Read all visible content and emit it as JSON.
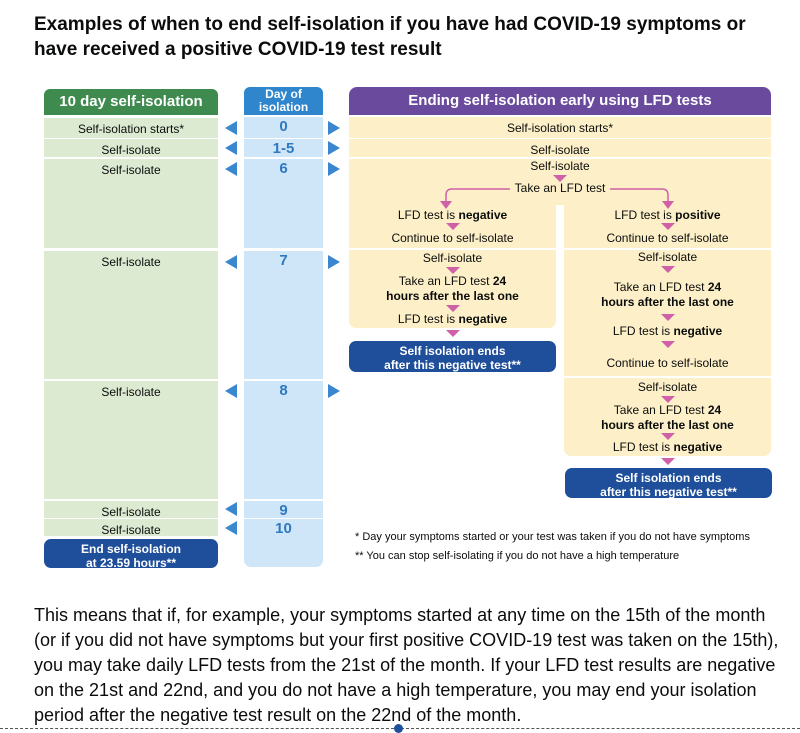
{
  "heading": "Examples of when to end self-isolation if you have had COVID-19 symptoms or have received a positive COVID-19 test result",
  "columns": {
    "left_header": "10 day self-isolation",
    "day_header_line1": "Day of",
    "day_header_line2": "isolation",
    "right_header": "Ending self-isolation early using LFD tests"
  },
  "left": {
    "starts": "Self-isolation starts*",
    "isolate": "Self-isolate",
    "end_line1": "End self-isolation",
    "end_line2": "at 23.59 hours**"
  },
  "days": [
    "0",
    "1-5",
    "6",
    "7",
    "8",
    "9",
    "10"
  ],
  "right": {
    "starts": "Self-isolation starts*",
    "isolate": "Self-isolate",
    "take_test": "Take an LFD test",
    "neg_prefix": "LFD test is ",
    "negative": "negative",
    "positive": "positive",
    "continue": "Continue to self-isolate",
    "take_24_prefix": "Take an LFD test ",
    "take_24_bold1": "24",
    "take_24_bold2": "hours after the last one",
    "ends_line1": "Self isolation ends",
    "ends_line2": "after this negative test**"
  },
  "notes": {
    "note1": "* Day your symptoms started or your test was taken if you do not have symptoms",
    "note2": "** You can stop self-isolating if you do not have a high temperature"
  },
  "paragraph": "This means that if, for example, your symptoms started at any time on the 15th of the month (or if you did not have symptoms but your first positive COVID-19 test was taken on the 15th), you may take daily LFD tests from the 21st of the month. If your LFD test results are negative on the 21st and 22nd, and you do not have a high temperature, you may end your isolation period after the negative test result on the 22nd of the month.",
  "colors": {
    "green": "#3f8b4f",
    "blue": "#2f86cc",
    "purple": "#6a4a9c",
    "navy": "#1f4e9a",
    "orange_bg": "#fdf0c8",
    "green_bg": "#dcead2",
    "blue_bg": "#cfe6f8",
    "pink_arrow": "#d060a8"
  }
}
